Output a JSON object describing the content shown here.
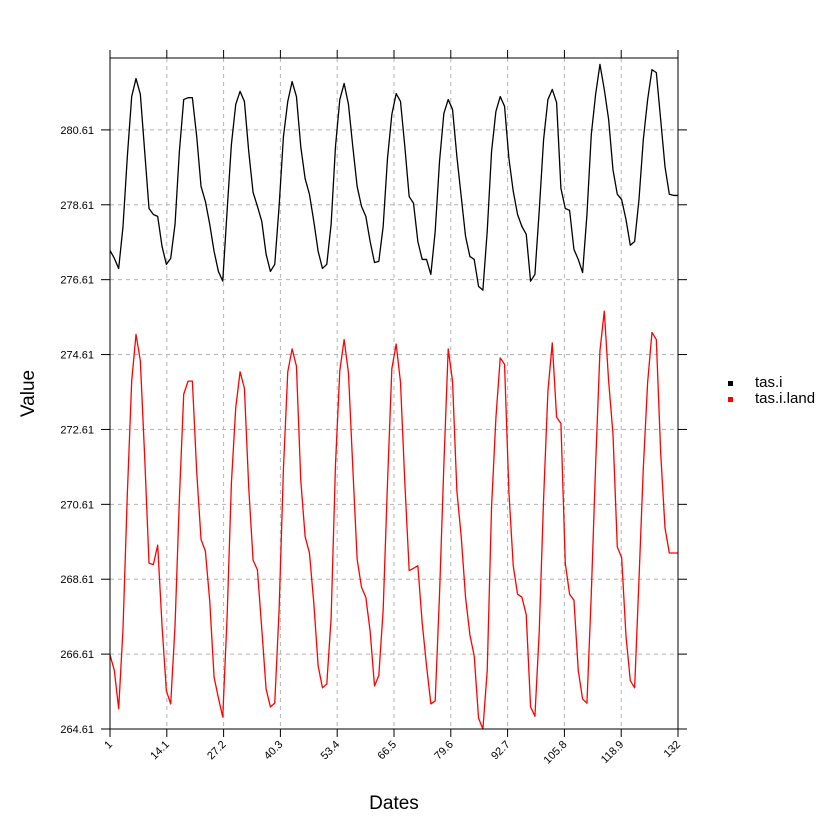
{
  "chart_data": {
    "type": "line",
    "title": "",
    "xlabel": "Dates",
    "ylabel": "Value",
    "xlim": [
      1,
      132
    ],
    "ylim": [
      264.61,
      282.53
    ],
    "grid": true,
    "legend_position": "right",
    "x_ticks": [
      "1",
      "14.1",
      "27.2",
      "40.3",
      "53.4",
      "66.5",
      "79.6",
      "92.7",
      "105.8",
      "118.9",
      "132"
    ],
    "x_tick_values": [
      1,
      14.1,
      27.2,
      40.3,
      53.4,
      66.5,
      79.6,
      92.7,
      105.8,
      118.9,
      132
    ],
    "y_ticks": [
      "264.61",
      "266.61",
      "268.61",
      "270.61",
      "272.61",
      "274.61",
      "276.61",
      "278.61",
      "280.61"
    ],
    "y_tick_values": [
      264.61,
      266.61,
      268.61,
      270.61,
      272.61,
      274.61,
      276.61,
      278.61,
      280.61
    ],
    "series": [
      {
        "name": "tas.i",
        "color": "#000000",
        "values": [
          277.39,
          277.18,
          276.91,
          278.03,
          279.9,
          281.5,
          281.98,
          281.56,
          280.03,
          278.51,
          278.35,
          278.3,
          277.5,
          277.02,
          277.18,
          278.09,
          280.03,
          281.42,
          281.47,
          281.47,
          280.43,
          279.1,
          278.7,
          278.09,
          277.37,
          276.83,
          276.57,
          278.43,
          280.22,
          281.29,
          281.64,
          281.37,
          280.03,
          278.94,
          278.57,
          278.17,
          277.29,
          276.83,
          277.02,
          278.57,
          280.43,
          281.37,
          281.9,
          281.5,
          280.16,
          279.31,
          278.89,
          278.17,
          277.37,
          276.91,
          277.02,
          278.09,
          280.16,
          281.42,
          281.85,
          281.29,
          280.16,
          279.1,
          278.57,
          278.3,
          277.63,
          277.07,
          277.1,
          278.03,
          279.85,
          281.02,
          281.58,
          281.37,
          280.16,
          278.83,
          278.65,
          277.63,
          277.15,
          277.15,
          276.75,
          277.9,
          279.77,
          281.05,
          281.42,
          281.16,
          279.9,
          278.83,
          277.77,
          277.23,
          277.15,
          276.43,
          276.33,
          277.9,
          280.03,
          281.1,
          281.5,
          281.24,
          279.85,
          278.97,
          278.35,
          278.03,
          277.82,
          276.57,
          276.75,
          278.46,
          280.35,
          281.42,
          281.69,
          281.34,
          279.05,
          278.51,
          278.46,
          277.42,
          277.15,
          276.8,
          278.35,
          280.48,
          281.56,
          282.36,
          281.69,
          280.89,
          279.55,
          278.89,
          278.75,
          278.22,
          277.53,
          277.63,
          278.75,
          280.35,
          281.42,
          282.22,
          282.14,
          280.89,
          279.63,
          278.89,
          278.86,
          278.86
        ]
      },
      {
        "name": "tas.i.land",
        "color": "#ff0000",
        "values": [
          266.59,
          266.17,
          265.15,
          267.29,
          270.89,
          273.9,
          275.15,
          274.44,
          271.87,
          269.04,
          269.0,
          269.52,
          267.37,
          265.63,
          265.28,
          267.37,
          270.75,
          273.55,
          273.9,
          273.9,
          271.47,
          269.67,
          269.36,
          268.03,
          266.0,
          265.44,
          264.93,
          267.58,
          271.18,
          273.19,
          274.15,
          273.71,
          271.05,
          269.12,
          268.86,
          267.29,
          265.68,
          265.2,
          265.3,
          267.79,
          271.56,
          274.15,
          274.76,
          274.3,
          271.25,
          269.75,
          269.31,
          267.98,
          266.3,
          265.71,
          265.81,
          267.58,
          271.66,
          274.18,
          275.01,
          274.12,
          271.58,
          269.14,
          268.4,
          268.13,
          267.22,
          265.76,
          266.04,
          267.79,
          271.18,
          274.23,
          274.89,
          273.87,
          271.18,
          268.84,
          268.9,
          268.97,
          267.45,
          266.3,
          265.28,
          265.36,
          268.21,
          271.66,
          274.76,
          273.9,
          270.97,
          269.75,
          268.13,
          267.13,
          266.56,
          264.9,
          264.61,
          266.17,
          270.54,
          272.91,
          274.52,
          274.35,
          270.94,
          268.97,
          268.21,
          268.13,
          267.66,
          265.2,
          264.95,
          267.22,
          270.75,
          273.63,
          274.92,
          272.94,
          272.77,
          269.04,
          268.21,
          268.05,
          266.17,
          265.41,
          265.3,
          268.21,
          271.66,
          274.71,
          275.77,
          273.9,
          272.5,
          269.47,
          269.19,
          267.1,
          265.9,
          265.71,
          268.6,
          271.58,
          273.87,
          275.2,
          275.01,
          272.0,
          269.98,
          269.31,
          269.31,
          269.31
        ]
      }
    ]
  },
  "axes": {
    "x_title": "Dates",
    "y_title": "Value"
  },
  "legend": {
    "items": [
      {
        "label": "tas.i",
        "color": "#000000"
      },
      {
        "label": "tas.i.land",
        "color": "#ff0000"
      }
    ]
  },
  "style": {
    "grid_color": "#b3b3b3",
    "frame_color": "#000000"
  }
}
